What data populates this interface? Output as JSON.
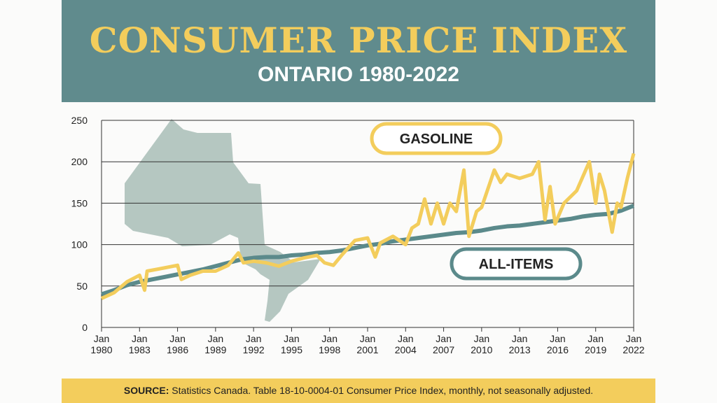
{
  "header": {
    "title": "CONSUMER PRICE INDEX",
    "subtitle": "ONTARIO 1980-2022"
  },
  "footer": {
    "label": "SOURCE:",
    "text": " Statistics Canada. Table 18-10-0004-01  Consumer Price Index, monthly, not seasonally adjusted."
  },
  "chart_data": {
    "type": "line",
    "title": "Consumer Price Index",
    "subtitle": "Ontario 1980-2022",
    "xlim": [
      1980,
      2022
    ],
    "ylim": [
      0,
      250
    ],
    "yticks": [
      0,
      50,
      100,
      150,
      200,
      250
    ],
    "xticks": [
      {
        "v": 1980,
        "l": "Jan|1980"
      },
      {
        "v": 1983,
        "l": "Jan|1983"
      },
      {
        "v": 1986,
        "l": "Jan|1986"
      },
      {
        "v": 1989,
        "l": "Jan|1989"
      },
      {
        "v": 1992,
        "l": "Jan|1992"
      },
      {
        "v": 1995,
        "l": "Jan|1995"
      },
      {
        "v": 1998,
        "l": "Jan|1998"
      },
      {
        "v": 2001,
        "l": "Jan|2001"
      },
      {
        "v": 2004,
        "l": "Jan|2004"
      },
      {
        "v": 2007,
        "l": "Jan|2007"
      },
      {
        "v": 2010,
        "l": "Jan|2010"
      },
      {
        "v": 2013,
        "l": "Jan|2013"
      },
      {
        "v": 2016,
        "l": "Jan|2016"
      },
      {
        "v": 2019,
        "l": "Jan|2019"
      },
      {
        "v": 2022,
        "l": "Jan|2022"
      }
    ],
    "grid": true,
    "series": [
      {
        "name": "ALL-ITEMS",
        "color": "#5b8a8b",
        "x": [
          1980,
          1981,
          1982,
          1983,
          1984,
          1985,
          1986,
          1987,
          1988,
          1989,
          1990,
          1991,
          1992,
          1993,
          1994,
          1995,
          1996,
          1997,
          1998,
          1999,
          2000,
          2001,
          2002,
          2003,
          2004,
          2005,
          2006,
          2007,
          2008,
          2009,
          2010,
          2011,
          2012,
          2013,
          2014,
          2015,
          2016,
          2017,
          2018,
          2019,
          2020,
          2021,
          2022
        ],
        "y": [
          40,
          45,
          51,
          55,
          58,
          61,
          64,
          67,
          70,
          74,
          78,
          82,
          84,
          85,
          85,
          87,
          88,
          90,
          91,
          93,
          96,
          99,
          101,
          104,
          106,
          108,
          110,
          112,
          114,
          115,
          117,
          120,
          122,
          123,
          125,
          127,
          129,
          131,
          134,
          136,
          137,
          141,
          147
        ]
      },
      {
        "name": "GASOLINE",
        "color": "#f3cd5c",
        "x": [
          1980,
          1981,
          1982,
          1983,
          1983.4,
          1983.6,
          1985,
          1986,
          1986.3,
          1987,
          1988,
          1989,
          1990,
          1990.8,
          1991.2,
          1992,
          1993,
          1994,
          1995,
          1996,
          1997,
          1997.6,
          1998.3,
          1999,
          2000,
          2001,
          2001.6,
          2002,
          2003,
          2004,
          2004.5,
          2005,
          2005.5,
          2006,
          2006.5,
          2007,
          2007.5,
          2008,
          2008.6,
          2009,
          2009.6,
          2010,
          2011,
          2011.5,
          2012,
          2013,
          2014,
          2014.5,
          2015,
          2015.4,
          2015.8,
          2016.5,
          2017.5,
          2018.5,
          2019,
          2019.3,
          2019.7,
          2020.3,
          2020.7,
          2021,
          2021.5,
          2022
        ],
        "y": [
          35,
          42,
          55,
          63,
          45,
          68,
          72,
          75,
          58,
          63,
          68,
          68,
          75,
          90,
          78,
          80,
          78,
          74,
          80,
          84,
          87,
          78,
          75,
          88,
          105,
          108,
          85,
          102,
          110,
          100,
          120,
          125,
          155,
          125,
          150,
          125,
          150,
          140,
          190,
          110,
          140,
          145,
          190,
          175,
          185,
          180,
          185,
          200,
          130,
          170,
          125,
          150,
          165,
          200,
          150,
          185,
          165,
          115,
          150,
          145,
          180,
          210
        ]
      }
    ]
  }
}
